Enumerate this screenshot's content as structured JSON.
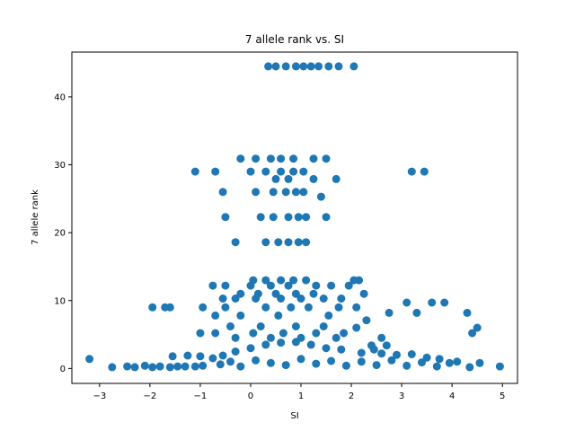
{
  "chart_data": {
    "type": "scatter",
    "title": "7 allele rank vs. SI",
    "xlabel": "SI",
    "ylabel": "7 allele rank",
    "xlim": [
      -3.55,
      5.3
    ],
    "ylim": [
      -2.2,
      46.6
    ],
    "xticks": [
      -3,
      -2,
      -1,
      0,
      1,
      2,
      3,
      4,
      5
    ],
    "yticks": [
      0,
      10,
      20,
      30,
      40
    ],
    "grid": false,
    "marker_color": "#1f77b4",
    "series": [
      {
        "points": [
          [
            0.35,
            44.5
          ],
          [
            0.5,
            44.5
          ],
          [
            0.7,
            44.5
          ],
          [
            0.9,
            44.5
          ],
          [
            1.05,
            44.5
          ],
          [
            1.2,
            44.5
          ],
          [
            1.35,
            44.5
          ],
          [
            1.55,
            44.5
          ],
          [
            1.75,
            44.5
          ],
          [
            2.05,
            44.5
          ],
          [
            -0.2,
            30.9
          ],
          [
            0.1,
            30.9
          ],
          [
            0.4,
            30.9
          ],
          [
            0.6,
            30.9
          ],
          [
            0.85,
            30.9
          ],
          [
            1.25,
            30.9
          ],
          [
            1.5,
            30.9
          ],
          [
            -1.1,
            29.0
          ],
          [
            -0.7,
            29.0
          ],
          [
            0.0,
            29.0
          ],
          [
            0.3,
            29.0
          ],
          [
            0.6,
            29.0
          ],
          [
            0.85,
            29.0
          ],
          [
            1.05,
            29.0
          ],
          [
            3.2,
            29.0
          ],
          [
            3.45,
            29.0
          ],
          [
            0.5,
            27.9
          ],
          [
            0.75,
            27.9
          ],
          [
            1.25,
            27.9
          ],
          [
            1.7,
            27.9
          ],
          [
            -0.55,
            26.0
          ],
          [
            0.1,
            26.0
          ],
          [
            0.45,
            26.0
          ],
          [
            0.7,
            26.0
          ],
          [
            0.9,
            26.0
          ],
          [
            1.05,
            26.0
          ],
          [
            1.4,
            25.3
          ],
          [
            -0.5,
            22.3
          ],
          [
            0.2,
            22.3
          ],
          [
            0.45,
            22.3
          ],
          [
            0.75,
            22.3
          ],
          [
            0.95,
            22.3
          ],
          [
            1.1,
            22.3
          ],
          [
            1.5,
            22.3
          ],
          [
            -0.3,
            18.6
          ],
          [
            0.3,
            18.6
          ],
          [
            0.55,
            18.6
          ],
          [
            0.75,
            18.6
          ],
          [
            0.95,
            18.6
          ],
          [
            1.1,
            18.6
          ],
          [
            0.05,
            13.0
          ],
          [
            0.3,
            13.0
          ],
          [
            0.6,
            13.0
          ],
          [
            0.85,
            13.0
          ],
          [
            1.1,
            13.0
          ],
          [
            2.05,
            13.0
          ],
          [
            2.15,
            13.0
          ],
          [
            -0.75,
            12.2
          ],
          [
            -0.5,
            12.2
          ],
          [
            0.0,
            12.2
          ],
          [
            0.4,
            12.2
          ],
          [
            0.75,
            12.2
          ],
          [
            1.3,
            12.2
          ],
          [
            1.6,
            12.2
          ],
          [
            1.95,
            12.2
          ],
          [
            -0.2,
            11.0
          ],
          [
            0.15,
            11.0
          ],
          [
            0.5,
            11.0
          ],
          [
            0.9,
            11.0
          ],
          [
            1.25,
            11.0
          ],
          [
            2.25,
            11.0
          ],
          [
            -0.55,
            10.3
          ],
          [
            -0.3,
            10.3
          ],
          [
            0.1,
            10.3
          ],
          [
            0.6,
            10.3
          ],
          [
            1.0,
            10.3
          ],
          [
            1.45,
            10.3
          ],
          [
            1.8,
            10.3
          ],
          [
            3.1,
            9.7
          ],
          [
            3.6,
            9.7
          ],
          [
            3.85,
            9.7
          ],
          [
            -1.95,
            9.0
          ],
          [
            -1.7,
            9.0
          ],
          [
            -1.6,
            9.0
          ],
          [
            -0.95,
            9.0
          ],
          [
            -0.5,
            9.0
          ],
          [
            0.3,
            9.0
          ],
          [
            0.8,
            9.0
          ],
          [
            1.15,
            9.0
          ],
          [
            1.75,
            9.0
          ],
          [
            2.1,
            9.0
          ],
          [
            2.75,
            8.2
          ],
          [
            3.3,
            8.2
          ],
          [
            4.3,
            8.2
          ],
          [
            -0.7,
            7.8
          ],
          [
            -0.2,
            7.8
          ],
          [
            0.55,
            7.8
          ],
          [
            1.55,
            7.8
          ],
          [
            2.3,
            7.1
          ],
          [
            -0.4,
            6.2
          ],
          [
            0.2,
            6.2
          ],
          [
            0.9,
            6.2
          ],
          [
            1.45,
            6.2
          ],
          [
            2.1,
            6.0
          ],
          [
            4.5,
            6.0
          ],
          [
            4.4,
            5.2
          ],
          [
            -1.0,
            5.2
          ],
          [
            -0.7,
            5.2
          ],
          [
            0.05,
            5.2
          ],
          [
            0.65,
            5.2
          ],
          [
            1.3,
            5.2
          ],
          [
            1.85,
            5.2
          ],
          [
            -0.3,
            4.5
          ],
          [
            0.4,
            4.5
          ],
          [
            1.0,
            4.5
          ],
          [
            1.7,
            4.5
          ],
          [
            2.6,
            4.5
          ],
          [
            2.4,
            3.4
          ],
          [
            2.7,
            3.4
          ],
          [
            2.45,
            2.8
          ],
          [
            -3.2,
            1.4
          ],
          [
            -2.75,
            0.2
          ],
          [
            -2.45,
            0.3
          ],
          [
            -2.3,
            0.2
          ],
          [
            -2.1,
            0.4
          ],
          [
            -1.95,
            0.2
          ],
          [
            -1.8,
            0.3
          ],
          [
            -1.6,
            0.2
          ],
          [
            -1.45,
            0.3
          ],
          [
            -1.3,
            0.3
          ],
          [
            -1.1,
            0.3
          ],
          [
            -0.95,
            0.4
          ],
          [
            -1.55,
            1.8
          ],
          [
            -1.25,
            1.9
          ],
          [
            -1.0,
            1.8
          ],
          [
            -0.75,
            1.5
          ],
          [
            -0.55,
            1.9
          ],
          [
            -0.3,
            2.5
          ],
          [
            0.0,
            3.0
          ],
          [
            0.3,
            3.5
          ],
          [
            0.6,
            3.8
          ],
          [
            0.9,
            3.9
          ],
          [
            1.2,
            3.5
          ],
          [
            1.5,
            3.0
          ],
          [
            1.8,
            2.8
          ],
          [
            -0.6,
            0.6
          ],
          [
            -0.4,
            1.0
          ],
          [
            -0.2,
            0.3
          ],
          [
            0.1,
            1.2
          ],
          [
            0.4,
            0.8
          ],
          [
            0.7,
            0.5
          ],
          [
            1.0,
            1.4
          ],
          [
            1.3,
            0.7
          ],
          [
            1.6,
            1.1
          ],
          [
            1.9,
            0.4
          ],
          [
            2.2,
            1.0
          ],
          [
            2.5,
            0.5
          ],
          [
            2.8,
            1.2
          ],
          [
            3.1,
            0.4
          ],
          [
            3.4,
            0.9
          ],
          [
            3.7,
            0.3
          ],
          [
            3.95,
            0.8
          ],
          [
            4.1,
            1.0
          ],
          [
            4.35,
            0.2
          ],
          [
            4.55,
            0.8
          ],
          [
            4.95,
            0.3
          ],
          [
            3.2,
            2.1
          ],
          [
            2.9,
            2.0
          ],
          [
            3.5,
            1.6
          ],
          [
            3.75,
            1.4
          ],
          [
            2.2,
            2.3
          ],
          [
            2.6,
            2.2
          ]
        ]
      }
    ]
  }
}
